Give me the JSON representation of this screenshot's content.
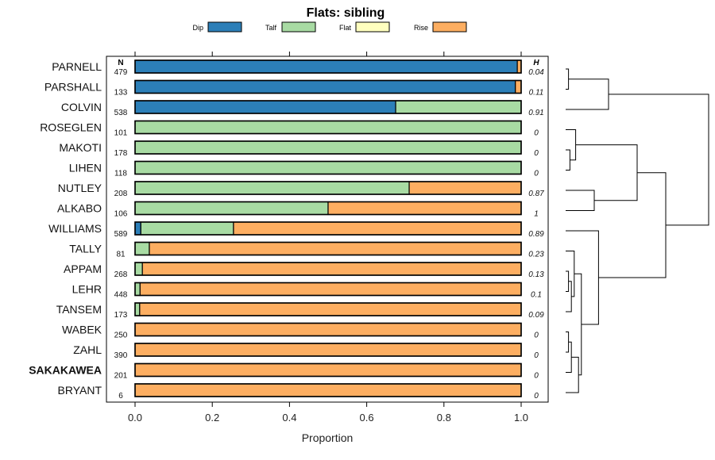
{
  "chart_data": {
    "type": "bar",
    "orientation": "horizontal",
    "stacked": true,
    "title": "Flats: sibling",
    "xlabel": "Proportion",
    "xlim": [
      0,
      1
    ],
    "xticks": [
      "0.0",
      "0.2",
      "0.4",
      "0.6",
      "0.8",
      "1.0"
    ],
    "n_header": "N",
    "h_header": "H",
    "legend": {
      "position": "top",
      "items": [
        {
          "name": "Dip",
          "color": "#2c7fb8"
        },
        {
          "name": "Talf",
          "color": "#a8dba3"
        },
        {
          "name": "Flat",
          "color": "#ffffbf"
        },
        {
          "name": "Rise",
          "color": "#fdae61"
        }
      ]
    },
    "highlighted_category": "SAKAKAWEA",
    "categories": [
      "PARNELL",
      "PARSHALL",
      "COLVIN",
      "ROSEGLEN",
      "MAKOTI",
      "LIHEN",
      "NUTLEY",
      "ALKABO",
      "WILLIAMS",
      "TALLY",
      "APPAM",
      "LEHR",
      "TANSEM",
      "WABEK",
      "ZAHL",
      "SAKAKAWEA",
      "BRYANT"
    ],
    "n": [
      "479",
      "133",
      "538",
      "101",
      "178",
      "118",
      "208",
      "106",
      "589",
      "81",
      "268",
      "448",
      "173",
      "250",
      "390",
      "201",
      "6"
    ],
    "h": [
      "0.04",
      "0.11",
      "0.91",
      "0",
      "0",
      "0",
      "0.87",
      "1",
      "0.89",
      "0.23",
      "0.13",
      "0.1",
      "0.09",
      "0",
      "0",
      "0",
      "0"
    ],
    "series": [
      {
        "name": "Dip",
        "values": [
          0.99,
          0.985,
          0.675,
          0,
          0,
          0,
          0,
          0,
          0.015,
          0,
          0,
          0,
          0,
          0,
          0,
          0,
          0
        ]
      },
      {
        "name": "Talf",
        "values": [
          0,
          0,
          0.325,
          1,
          1,
          1,
          0.71,
          0.5,
          0.24,
          0.037,
          0.019,
          0.013,
          0.012,
          0,
          0,
          0,
          0
        ]
      },
      {
        "name": "Flat",
        "values": [
          0,
          0,
          0,
          0,
          0,
          0,
          0,
          0,
          0,
          0,
          0,
          0,
          0,
          0,
          0,
          0,
          0
        ]
      },
      {
        "name": "Rise",
        "values": [
          0.01,
          0.015,
          0,
          0,
          0,
          0,
          0.29,
          0.5,
          0.745,
          0.963,
          0.981,
          0.987,
          0.988,
          1,
          1,
          1,
          1
        ]
      }
    ],
    "dendrogram": {
      "type": "hierarchical-clustering",
      "leaf_order": [
        "PARNELL",
        "PARSHALL",
        "COLVIN",
        "ROSEGLEN",
        "MAKOTI",
        "LIHEN",
        "NUTLEY",
        "ALKABO",
        "WILLIAMS",
        "TALLY",
        "APPAM",
        "LEHR",
        "TANSEM",
        "WABEK",
        "ZAHL",
        "SAKAKAWEA",
        "BRYANT"
      ],
      "merges": [
        {
          "a": "PARNELL",
          "b": "PARSHALL",
          "height": 0.02
        },
        {
          "a": "PARNELL+PARSHALL",
          "b": "COLVIN",
          "height": 0.3
        },
        {
          "a": "MAKOTI",
          "b": "LIHEN",
          "height": 0.03
        },
        {
          "a": "ROSEGLEN",
          "b": "MAKOTI+LIHEN",
          "height": 0.07
        },
        {
          "a": "NUTLEY",
          "b": "ALKABO",
          "height": 0.2
        },
        {
          "a": "ROSEGLEN+MAKOTI+LIHEN",
          "b": "NUTLEY+ALKABO",
          "height": 0.5
        },
        {
          "a": "APPAM",
          "b": "LEHR",
          "height": 0.02
        },
        {
          "a": "APPAM+LEHR",
          "b": "TANSEM",
          "height": 0.04
        },
        {
          "a": "TALLY",
          "b": "APPAM+LEHR+TANSEM",
          "height": 0.06
        },
        {
          "a": "WABEK",
          "b": "ZAHL",
          "height": 0.02
        },
        {
          "a": "WABEK+ZAHL",
          "b": "SAKAKAWEA",
          "height": 0.04
        },
        {
          "a": "WABEK+ZAHL+SAKAKAWEA",
          "b": "BRYANT",
          "height": 0.09
        },
        {
          "a": "TALLY+APPAM+LEHR+TANSEM",
          "b": "WABEK+ZAHL+SAKAKAWEA+BRYANT",
          "height": 0.11
        },
        {
          "a": "WILLIAMS",
          "b": "TALLY..BRYANT",
          "height": 0.23
        },
        {
          "a": "ROSEGLEN..ALKABO",
          "b": "WILLIAMS..BRYANT",
          "height": 0.7
        },
        {
          "a": "PARNELL+PARSHALL+COLVIN",
          "b": "ROSEGLEN..BRYANT",
          "height": 1.0
        }
      ]
    }
  }
}
